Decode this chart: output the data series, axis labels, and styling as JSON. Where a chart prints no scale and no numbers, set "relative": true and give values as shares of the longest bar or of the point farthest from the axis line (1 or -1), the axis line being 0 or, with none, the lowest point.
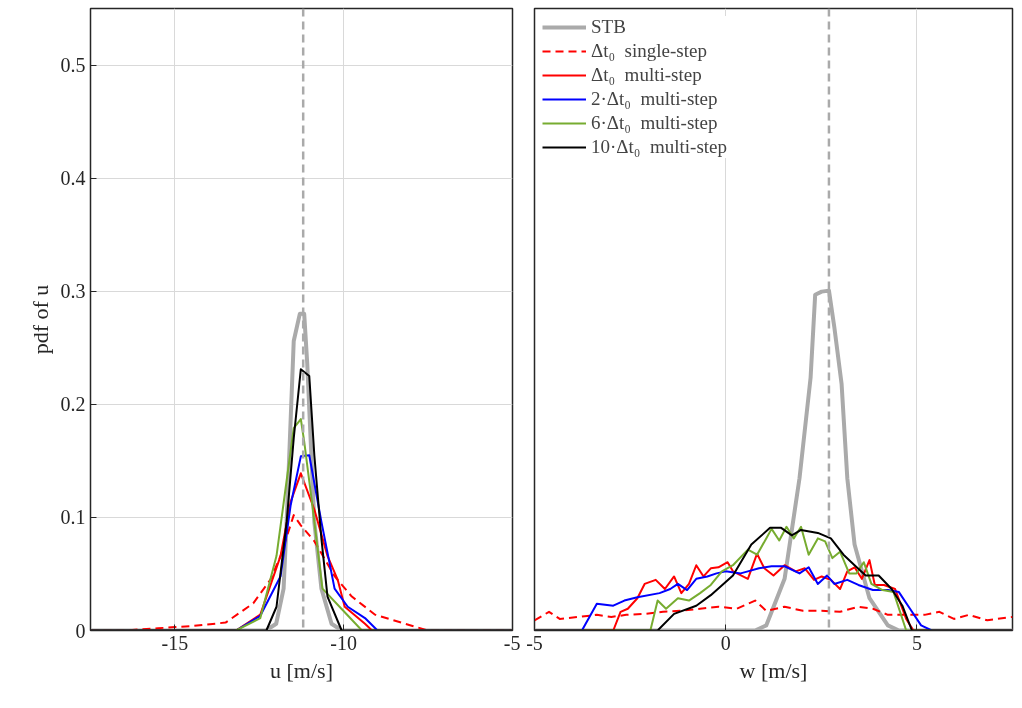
{
  "chart_data": [
    {
      "type": "line",
      "xlabel": "u [m/s]",
      "ylabel": "pdf of u",
      "xlim": [
        -17.5,
        -5
      ],
      "xticks": [
        -15,
        -10,
        -5
      ],
      "ylim": [
        0,
        0.55
      ],
      "yticks": [
        0,
        0.1,
        0.2,
        0.3,
        0.4,
        0.5
      ],
      "grid": true,
      "legend": false,
      "ref_lines": [
        {
          "axis": "x",
          "value": -11.2,
          "color": "#aaaaaa",
          "line_style": "dashed"
        }
      ],
      "series": [
        {
          "color": "#aaaaaa",
          "x": [
            -17.5,
            -12.3,
            -12.0,
            -11.78,
            -11.69,
            -11.48,
            -11.3,
            -11.17,
            -11.08,
            -10.87,
            -10.66,
            -10.36,
            -10.06,
            -5
          ],
          "values": [
            0,
            0,
            0.006,
            0.037,
            0.096,
            0.256,
            0.28,
            0.28,
            0.236,
            0.096,
            0.037,
            0.006,
            0,
            0
          ]
        },
        {
          "color": "#ff0000",
          "line_style": "dashed",
          "x": [
            -17.5,
            -16.5,
            -15.5,
            -15.0,
            -14.49,
            -13.5,
            -12.68,
            -12.17,
            -11.87,
            -11.48,
            -11.27,
            -10.87,
            -10.27,
            -9.76,
            -9.07,
            -7.96,
            -7.5,
            -5
          ],
          "values": [
            0,
            0,
            0.002,
            0.003,
            0.004,
            0.007,
            0.024,
            0.045,
            0.066,
            0.102,
            0.093,
            0.079,
            0.048,
            0.03,
            0.014,
            0.004,
            0,
            0
          ]
        },
        {
          "color": "#ff0000",
          "x": [
            -17.5,
            -13.19,
            -12.47,
            -11.87,
            -11.57,
            -11.27,
            -10.87,
            -10.48,
            -10.18,
            -9.97,
            -9.37,
            -9.16,
            -5
          ],
          "values": [
            0,
            0,
            0.014,
            0.066,
            0.114,
            0.139,
            0.107,
            0.066,
            0.045,
            0.021,
            0.006,
            0,
            0
          ]
        },
        {
          "color": "#0000ff",
          "x": [
            -17.5,
            -13.19,
            -12.47,
            -11.87,
            -11.57,
            -11.27,
            -11.02,
            -10.66,
            -10.27,
            -9.88,
            -9.37,
            -9.0,
            -5
          ],
          "values": [
            0,
            0,
            0.013,
            0.048,
            0.111,
            0.154,
            0.155,
            0.096,
            0.037,
            0.021,
            0.011,
            0,
            0
          ]
        },
        {
          "color": "#77ac30",
          "x": [
            -17.5,
            -13.19,
            -12.47,
            -11.99,
            -11.72,
            -11.48,
            -11.27,
            -11.17,
            -10.93,
            -10.63,
            -10.06,
            -9.46,
            -5
          ],
          "values": [
            0,
            0,
            0.011,
            0.066,
            0.126,
            0.179,
            0.187,
            0.167,
            0.111,
            0.037,
            0.019,
            0,
            0
          ]
        },
        {
          "color": "#000000",
          "x": [
            -17.5,
            -12.29,
            -11.99,
            -11.69,
            -11.48,
            -11.27,
            -11.02,
            -10.87,
            -10.66,
            -10.48,
            -10.06,
            -5
          ],
          "values": [
            0,
            0,
            0.021,
            0.096,
            0.17,
            0.231,
            0.225,
            0.155,
            0.081,
            0.03,
            0,
            0
          ]
        }
      ]
    },
    {
      "type": "line",
      "relative": true,
      "xlabel": "w [m/s]",
      "xlim": [
        -5,
        7.5
      ],
      "xticks": [
        -5,
        0,
        5
      ],
      "grid": "x",
      "legend": "top left",
      "ref_lines": [
        {
          "axis": "x",
          "value": 2.7,
          "color": "#aaaaaa",
          "line_style": "dashed"
        }
      ],
      "series": [
        {
          "name": "STB",
          "color": "#aaaaaa",
          "x": [
            -5,
            0.77,
            1.06,
            1.54,
            1.93,
            2.22,
            2.34,
            2.51,
            2.7,
            2.84,
            3.03,
            3.18,
            3.37,
            3.76,
            4.24,
            4.53,
            7.5
          ],
          "values": [
            0,
            0,
            0.015,
            0.152,
            0.448,
            0.744,
            0.988,
            0.997,
            1,
            0.893,
            0.726,
            0.448,
            0.253,
            0.095,
            0.015,
            0,
            0
          ]
        },
        {
          "name": "Δt₀  single-step",
          "color": "#ff0000",
          "line_style": "dashed",
          "x": [
            -5,
            -4.62,
            -4.34,
            -3.85,
            -3.37,
            -2.99,
            -2.6,
            -2.12,
            -1.64,
            -1.16,
            -0.67,
            -0.19,
            0.29,
            0.77,
            1.06,
            1.54,
            2.02,
            2.51,
            2.99,
            3.47,
            3.85,
            4.24,
            4.72,
            5.2,
            5.59,
            5.97,
            6.36,
            6.84,
            7.5
          ],
          "values": [
            0.03,
            0.055,
            0.034,
            0.04,
            0.046,
            0.04,
            0.046,
            0.049,
            0.055,
            0.058,
            0.064,
            0.07,
            0.064,
            0.088,
            0.058,
            0.07,
            0.058,
            0.058,
            0.055,
            0.07,
            0.064,
            0.046,
            0.046,
            0.046,
            0.055,
            0.034,
            0.046,
            0.03,
            0.04
          ]
        },
        {
          "name": "Δt₀  multi-step",
          "color": "#ff0000",
          "x": [
            -5,
            -2.94,
            -2.75,
            -2.56,
            -2.31,
            -2.12,
            -1.83,
            -1.59,
            -1.35,
            -1.16,
            -0.96,
            -0.77,
            -0.58,
            -0.39,
            -0.19,
            0.05,
            0.19,
            0.58,
            0.82,
            1.01,
            1.25,
            1.54,
            1.83,
            2.07,
            2.31,
            2.51,
            2.75,
            2.99,
            3.18,
            3.37,
            3.56,
            3.76,
            3.9,
            4.14,
            4.43,
            4.72,
            4.91,
            7.5
          ],
          "values": [
            0,
            0,
            0.055,
            0.064,
            0.095,
            0.137,
            0.149,
            0.122,
            0.159,
            0.11,
            0.137,
            0.192,
            0.159,
            0.183,
            0.186,
            0.201,
            0.174,
            0.152,
            0.226,
            0.183,
            0.162,
            0.192,
            0.174,
            0.183,
            0.149,
            0.159,
            0.149,
            0.122,
            0.174,
            0.186,
            0.152,
            0.207,
            0.134,
            0.134,
            0.122,
            0.034,
            0,
            0
          ]
        },
        {
          "name": "2·Δt₀  multi-step",
          "color": "#0000ff",
          "x": [
            -5,
            -3.76,
            -3.37,
            -2.94,
            -2.65,
            -2.31,
            -1.73,
            -1.45,
            -1.25,
            -1.01,
            -0.77,
            -0.48,
            -0.24,
            0,
            0.39,
            0.58,
            0.87,
            1.2,
            1.54,
            1.93,
            2.17,
            2.41,
            2.65,
            2.84,
            3.18,
            3.47,
            3.85,
            4.24,
            4.53,
            4.82,
            5.11,
            5.39,
            7.5
          ],
          "values": [
            0,
            0,
            0.079,
            0.073,
            0.088,
            0.098,
            0.11,
            0.122,
            0.137,
            0.119,
            0.152,
            0.159,
            0.168,
            0.174,
            0.168,
            0.174,
            0.183,
            0.189,
            0.189,
            0.168,
            0.186,
            0.137,
            0.162,
            0.137,
            0.149,
            0.134,
            0.119,
            0.119,
            0.113,
            0.064,
            0.015,
            0,
            0
          ]
        },
        {
          "name": "6·Δt₀  multi-step",
          "color": "#77ac30",
          "x": [
            -5,
            -1.97,
            -1.78,
            -1.56,
            -1.25,
            -0.96,
            -0.67,
            -0.39,
            -0.1,
            0.19,
            0.58,
            0.82,
            1.06,
            1.2,
            1.4,
            1.59,
            1.78,
            1.97,
            2.17,
            2.41,
            2.6,
            2.79,
            2.99,
            3.23,
            3.42,
            3.61,
            3.81,
            4.1,
            4.39,
            4.72,
            7.5
          ],
          "values": [
            0,
            0,
            0.088,
            0.064,
            0.095,
            0.088,
            0.11,
            0.134,
            0.174,
            0.192,
            0.238,
            0.223,
            0.271,
            0.299,
            0.265,
            0.305,
            0.271,
            0.305,
            0.223,
            0.271,
            0.262,
            0.213,
            0.232,
            0.168,
            0.168,
            0.201,
            0.137,
            0.119,
            0.113,
            0,
            0
          ]
        },
        {
          "name": "10·Δt₀  multi-step",
          "color": "#000000",
          "x": [
            -5,
            -1.78,
            -1.35,
            -0.77,
            -0.39,
            0.19,
            0.67,
            1.16,
            1.45,
            1.73,
            1.97,
            2.41,
            2.75,
            3.08,
            3.37,
            3.66,
            4.0,
            4.34,
            4.62,
            4.87,
            7.5
          ],
          "values": [
            0,
            0,
            0.049,
            0.073,
            0.104,
            0.162,
            0.253,
            0.302,
            0.302,
            0.28,
            0.296,
            0.287,
            0.271,
            0.223,
            0.192,
            0.162,
            0.162,
            0.122,
            0.073,
            0,
            0
          ]
        }
      ]
    }
  ]
}
